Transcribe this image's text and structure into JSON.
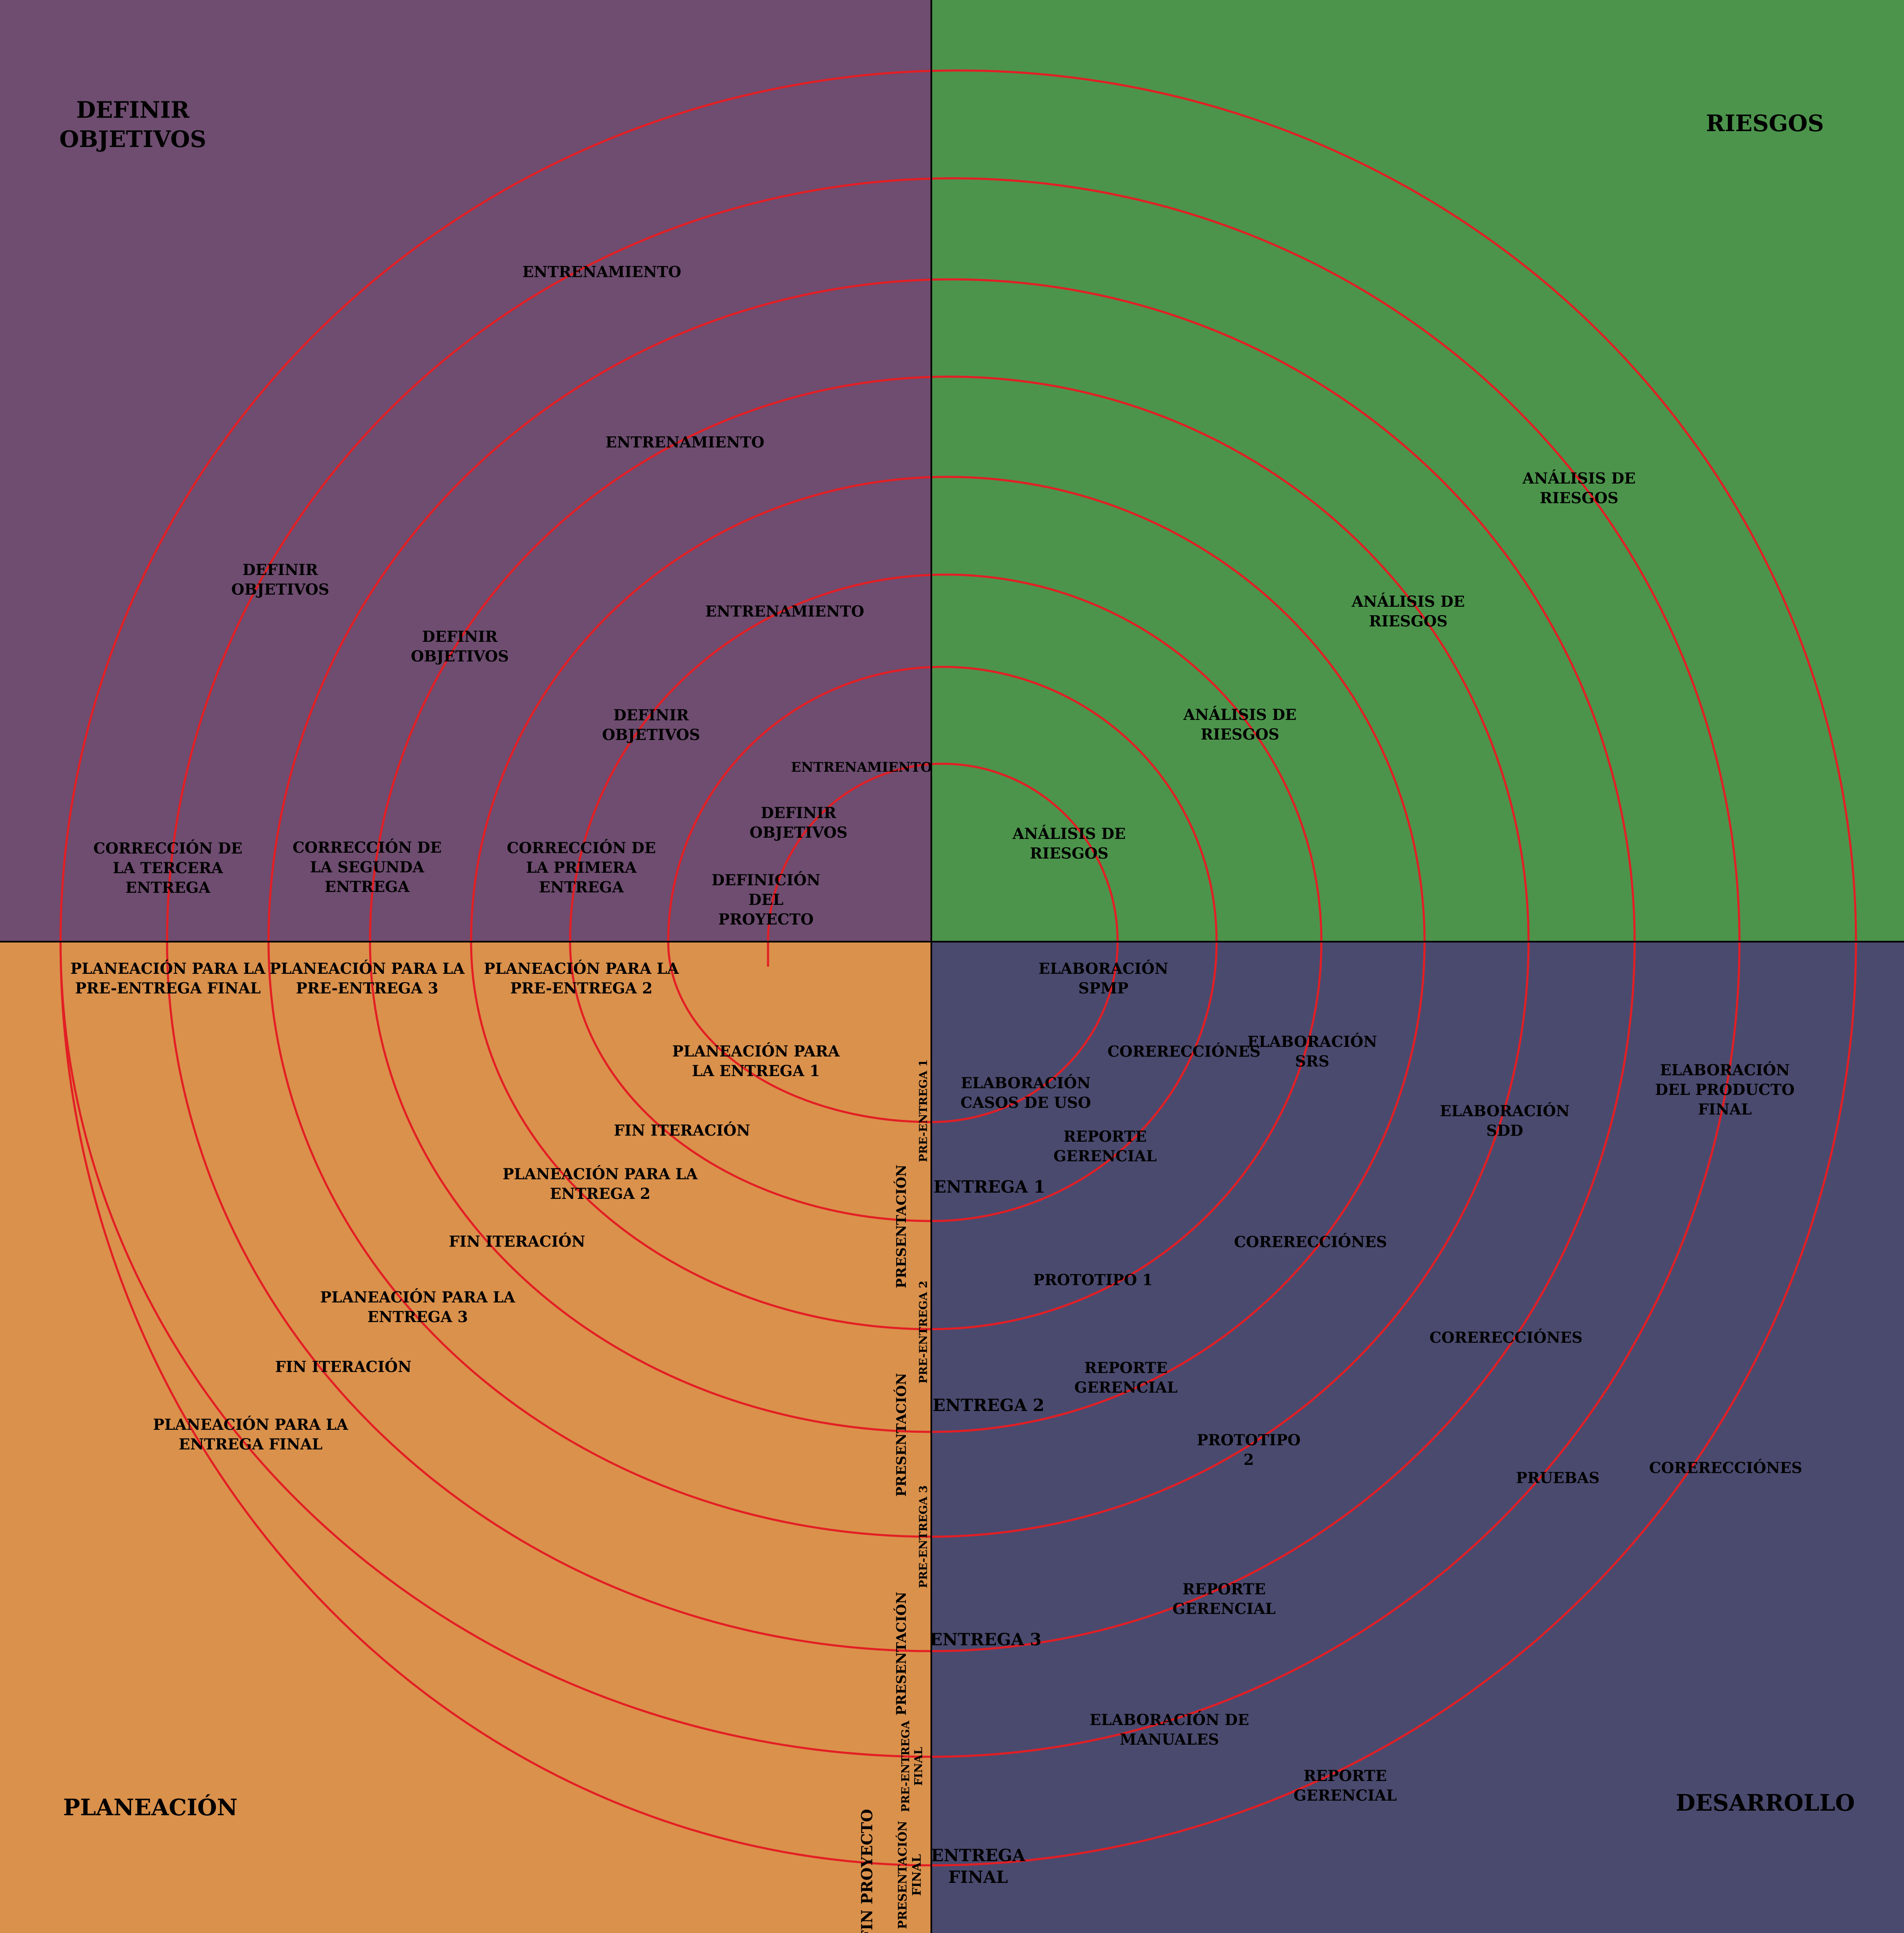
{
  "colors": {
    "objectives": "#6e4d70",
    "risks": "#4c944c",
    "planning": "#da914c",
    "development": "#4a4a6f",
    "spiral": "#e31e24",
    "axis": "#000000"
  },
  "quadrants": {
    "objectives": "DEFINIR\nOBJETIVOS",
    "risks": "RIESGOS",
    "planning": "PLANEACIÓN",
    "development": "DESARROLLO"
  },
  "objectives": {
    "entrenamiento_1": "ENTRENAMIENTO",
    "entrenamiento_2": "ENTRENAMIENTO",
    "entrenamiento_3": "ENTRENAMIENTO",
    "entrenamiento_4": "ENTRENAMIENTO",
    "definir_1": "DEFINIR\nOBJETIVOS",
    "definir_2": "DEFINIR\nOBJETIVOS",
    "definir_3": "DEFINIR\nOBJETIVOS",
    "definir_4": "DEFINIR\nOBJETIVOS",
    "definicion_proyecto": "DEFINICIÓN\nDEL\nPROYECTO",
    "correccion_1": "CORRECCIÓN DE\nLA PRIMERA\nENTREGA",
    "correccion_2": "CORRECCIÓN DE\nLA SEGUNDA\nENTREGA",
    "correccion_3": "CORRECCIÓN DE\nLA TERCERA\nENTREGA"
  },
  "risks": {
    "analisis_1": "ANÁLISIS DE\nRIESGOS",
    "analisis_2": "ANÁLISIS DE\nRIESGOS",
    "analisis_3": "ANÁLISIS DE\nRIESGOS",
    "analisis_4": "ANÁLISIS DE\nRIESGOS"
  },
  "planning": {
    "pre_final": "PLANEACIÓN PARA LA\nPRE-ENTREGA FINAL",
    "pre_3": "PLANEACIÓN PARA LA\nPRE-ENTREGA 3",
    "pre_2": "PLANEACIÓN PARA LA\nPRE-ENTREGA 2",
    "entrega_1": "PLANEACIÓN PARA\nLA ENTREGA 1",
    "fin_1": "FIN ITERACIÓN",
    "entrega_2": "PLANEACIÓN PARA LA\nENTREGA 2",
    "fin_2": "FIN ITERACIÓN",
    "entrega_3": "PLANEACIÓN PARA LA\nENTREGA 3",
    "fin_3": "FIN ITERACIÓN",
    "entrega_final": "PLANEACIÓN PARA LA\nENTREGA FINAL",
    "pre_entrega_1": "PRE-ENTREGA 1",
    "presentacion_1": "PRESENTACIÓN",
    "pre_entrega_2": "PRE-ENTREGA 2",
    "presentacion_2": "PRESENTACIÓN",
    "pre_entrega_3": "PRE-ENTREGA 3",
    "presentacion_3": "PRESENTACIÓN",
    "pre_entrega_final": "PRE-ENTREGA\nFINAL",
    "fin_proyecto": "FIN PROYECTO",
    "presentacion_final": "PRESENTACIÓN\nFINAL"
  },
  "development": {
    "spmp": "ELABORACIÓN\nSPMP",
    "correcciones_1": "CORERECCIÓNES",
    "srs": "ELABORACIÓN\nSRS",
    "casos_uso": "ELABORACIÓN\nCASOS DE USO",
    "reporte_1": "REPORTE\nGERENCIAL",
    "entrega_1": "ENTREGA 1",
    "sdd": "ELABORACIÓN\nSDD",
    "producto_final": "ELABORACIÓN\nDEL PRODUCTO\nFINAL",
    "correcciones_2": "CORERECCIÓNES",
    "prototipo_1": "PROTOTIPO 1",
    "correcciones_3": "CORERECCIÓNES",
    "reporte_2": "REPORTE\nGERENCIAL",
    "entrega_2": "ENTREGA 2",
    "prototipo_2": "PROTOTIPO\n2",
    "pruebas": "PRUEBAS",
    "correcciones_4": "CORERECCIÓNES",
    "reporte_3": "REPORTE\nGERENCIAL",
    "entrega_3": "ENTREGA 3",
    "manuales": "ELABORACIÓN DE\nMANUALES",
    "reporte_4": "REPORTE\nGERENCIAL",
    "entrega_final": "ENTREGA\nFINAL"
  }
}
